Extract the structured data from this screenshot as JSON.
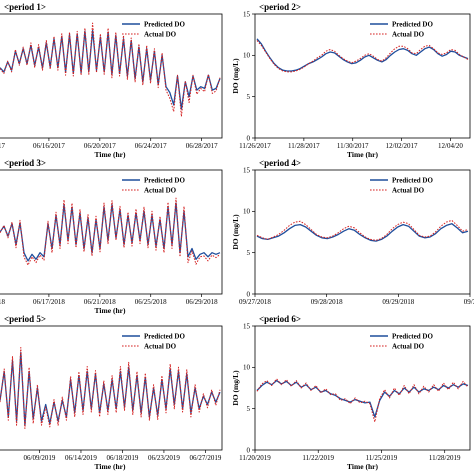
{
  "chart_data": [
    {
      "type": "line",
      "title": "<period 1>",
      "xlabel": "Time (hr)",
      "ylabel": "",
      "ylim": [
        0,
        15
      ],
      "yticks": [],
      "xticks": [
        "2017",
        "06/16/2017",
        "06/20/2017",
        "06/24/2017",
        "06/28/2017"
      ],
      "legend": "top-right",
      "series": [
        {
          "name": "Predicted DO",
          "color": "#1f4e9c",
          "style": "solid",
          "values": [
            8.5,
            8.0,
            9.2,
            8.2,
            10.5,
            9.0,
            10.8,
            9.0,
            11.2,
            8.8,
            11.0,
            8.5,
            11.5,
            8.6,
            12.0,
            8.5,
            12.3,
            8.0,
            12.5,
            7.8,
            12.6,
            7.9,
            12.9,
            8.0,
            13.0,
            8.2,
            12.2,
            8.0,
            12.8,
            7.7,
            12.4,
            7.8,
            12.0,
            7.5,
            11.8,
            7.2,
            11.0,
            6.8,
            10.8,
            7.0,
            10.5,
            6.5,
            10.0,
            6.2,
            5.5,
            4.0,
            7.5,
            3.5,
            6.8,
            5.0,
            7.5,
            5.8,
            6.2,
            6.0,
            7.6,
            5.8,
            6.0,
            7.2
          ]
        },
        {
          "name": "Actual DO",
          "color": "#d42020",
          "style": "dash",
          "values": [
            8.4,
            7.8,
            9.3,
            8.0,
            10.7,
            8.8,
            11.0,
            8.8,
            11.5,
            8.5,
            11.3,
            8.2,
            11.8,
            8.3,
            12.3,
            8.2,
            12.6,
            7.6,
            12.8,
            7.5,
            12.9,
            7.6,
            13.3,
            7.7,
            13.9,
            7.9,
            12.6,
            7.7,
            13.3,
            7.3,
            12.8,
            7.5,
            12.4,
            7.1,
            12.1,
            6.8,
            11.4,
            6.4,
            11.2,
            6.6,
            10.8,
            6.1,
            10.3,
            5.8,
            4.8,
            3.2,
            7.6,
            2.6,
            6.9,
            4.3,
            7.6,
            5.3,
            6.0,
            5.6,
            7.7,
            5.4,
            5.7,
            7.3
          ]
        }
      ]
    },
    {
      "type": "line",
      "title": "<period 2>",
      "xlabel": "Time (hr)",
      "ylabel": "DO (mg/L)",
      "ylim": [
        0,
        15
      ],
      "yticks": [
        "0",
        "5",
        "10",
        "15"
      ],
      "xticks": [
        "11/26/2017",
        "11/28/2017",
        "11/30/2017",
        "12/02/2017",
        "12/04/20"
      ],
      "legend": "top-right",
      "series": [
        {
          "name": "Predicted DO",
          "color": "#1f4e9c",
          "style": "solid",
          "values": [
            12.0,
            11.4,
            10.5,
            9.7,
            9.0,
            8.5,
            8.2,
            8.1,
            8.1,
            8.2,
            8.4,
            8.7,
            9.0,
            9.2,
            9.5,
            9.8,
            10.2,
            10.4,
            10.3,
            9.9,
            9.5,
            9.2,
            9.0,
            9.1,
            9.4,
            9.8,
            10.0,
            9.7,
            9.4,
            9.2,
            9.5,
            10.0,
            10.4,
            10.7,
            10.8,
            10.6,
            10.2,
            10.0,
            10.4,
            10.8,
            11.0,
            10.7,
            10.2,
            9.9,
            10.1,
            10.5,
            10.4,
            10.0,
            9.8,
            9.6
          ]
        },
        {
          "name": "Actual DO",
          "color": "#d42020",
          "style": "dash",
          "values": [
            11.8,
            11.2,
            10.4,
            9.6,
            8.9,
            8.4,
            8.1,
            8.0,
            8.0,
            8.1,
            8.3,
            8.6,
            9.0,
            9.3,
            9.7,
            10.0,
            10.5,
            10.7,
            10.5,
            10.0,
            9.6,
            9.3,
            9.1,
            9.3,
            9.6,
            10.0,
            10.2,
            9.9,
            9.5,
            9.3,
            9.7,
            10.3,
            10.8,
            11.1,
            11.1,
            10.8,
            10.3,
            10.2,
            10.7,
            11.1,
            11.2,
            10.8,
            10.3,
            10.1,
            10.3,
            10.7,
            10.6,
            10.1,
            9.8,
            9.5
          ]
        }
      ]
    },
    {
      "type": "line",
      "title": "<period 3>",
      "xlabel": "Time (hr)",
      "ylabel": "",
      "ylim": [
        0,
        15
      ],
      "yticks": [],
      "xticks": [
        "2018",
        "06/17/2018",
        "06/21/2018",
        "06/25/2018",
        "06/29/2018"
      ],
      "legend": "top-right",
      "series": [
        {
          "name": "Predicted DO",
          "color": "#1f4e9c",
          "style": "solid",
          "values": [
            7.5,
            8.2,
            7.0,
            8.5,
            6.0,
            8.6,
            5.0,
            4.0,
            4.8,
            4.2,
            5.0,
            4.5,
            8.5,
            5.5,
            9.5,
            6.0,
            10.8,
            6.5,
            10.5,
            6.0,
            9.8,
            5.5,
            9.2,
            5.0,
            9.0,
            5.5,
            10.5,
            6.5,
            10.8,
            6.8,
            10.2,
            6.0,
            9.5,
            6.2,
            9.8,
            6.5,
            10.0,
            6.0,
            9.5,
            5.8,
            9.0,
            5.5,
            10.5,
            6.0,
            11.0,
            5.0,
            10.0,
            4.5,
            5.5,
            4.2,
            4.8,
            5.0,
            4.5,
            5.0,
            4.8,
            5.0
          ]
        },
        {
          "name": "Actual DO",
          "color": "#d42020",
          "style": "dash",
          "values": [
            7.4,
            8.3,
            6.8,
            8.7,
            5.6,
            8.9,
            4.5,
            3.5,
            4.5,
            3.8,
            4.7,
            4.1,
            8.8,
            5.0,
            9.9,
            5.5,
            11.4,
            6.1,
            11.0,
            5.6,
            10.2,
            5.1,
            9.6,
            4.6,
            9.4,
            5.1,
            11.0,
            6.1,
            11.3,
            6.5,
            10.6,
            5.6,
            9.9,
            5.8,
            10.3,
            6.1,
            10.5,
            5.6,
            10.0,
            5.3,
            9.4,
            5.0,
            11.1,
            5.5,
            11.6,
            4.5,
            10.6,
            3.8,
            5.2,
            3.6,
            4.5,
            4.6,
            4.0,
            4.7,
            4.4,
            4.8
          ]
        }
      ]
    },
    {
      "type": "line",
      "title": "<period 4>",
      "xlabel": "",
      "ylabel": "DO (mg/L)",
      "ylim": [
        0,
        15
      ],
      "yticks": [
        "0",
        "5",
        "10",
        "15"
      ],
      "xticks": [
        "09/27/2018",
        "09/28/2018",
        "09/29/2018",
        "09/3"
      ],
      "legend": "top-right",
      "series": [
        {
          "name": "Predicted DO",
          "color": "#1f4e9c",
          "style": "solid",
          "values": [
            7.0,
            6.7,
            6.6,
            6.8,
            7.0,
            7.4,
            7.9,
            8.3,
            8.4,
            8.1,
            7.6,
            7.1,
            6.8,
            6.7,
            6.9,
            7.2,
            7.6,
            7.9,
            7.7,
            7.2,
            6.8,
            6.5,
            6.4,
            6.6,
            7.0,
            7.6,
            8.1,
            8.4,
            8.2,
            7.6,
            7.0,
            6.8,
            6.9,
            7.3,
            7.9,
            8.3,
            8.5,
            8.0,
            7.4,
            7.6
          ]
        },
        {
          "name": "Actual DO",
          "color": "#d42020",
          "style": "dash",
          "values": [
            7.1,
            6.8,
            6.6,
            6.9,
            7.2,
            7.7,
            8.3,
            8.7,
            8.8,
            8.4,
            7.8,
            7.2,
            6.9,
            6.8,
            7.0,
            7.4,
            7.9,
            8.2,
            8.0,
            7.4,
            6.9,
            6.6,
            6.5,
            6.7,
            7.2,
            7.9,
            8.4,
            8.7,
            8.5,
            7.8,
            7.1,
            6.9,
            7.0,
            7.5,
            8.2,
            8.7,
            8.9,
            8.3,
            7.6,
            7.8
          ]
        }
      ]
    },
    {
      "type": "line",
      "title": "<period 5>",
      "xlabel": "Time (hr)",
      "ylabel": "",
      "ylim": [
        0,
        15
      ],
      "yticks": [],
      "xticks": [
        "9",
        "06/09/2019",
        "06/14/2019",
        "06/18/2019",
        "06/23/2019",
        "06/27/2019"
      ],
      "legend": "top-right",
      "series": [
        {
          "name": "Predicted DO",
          "color": "#1f4e9c",
          "style": "solid",
          "values": [
            6.0,
            9.5,
            4.0,
            10.8,
            3.5,
            11.8,
            3.0,
            9.5,
            3.8,
            7.5,
            3.5,
            5.5,
            3.2,
            5.8,
            3.5,
            6.0,
            4.0,
            8.5,
            4.5,
            9.0,
            4.8,
            9.5,
            5.0,
            9.2,
            4.5,
            8.0,
            4.8,
            8.5,
            5.0,
            9.5,
            5.2,
            10.0,
            4.8,
            9.0,
            4.5,
            8.8,
            4.0,
            7.5,
            4.2,
            8.5,
            5.0,
            9.8,
            5.5,
            9.5,
            5.0,
            9.2,
            4.5,
            7.5,
            5.0,
            6.5,
            5.5,
            7.0,
            5.8,
            7.0
          ]
        },
        {
          "name": "Actual DO",
          "color": "#d42020",
          "style": "dash",
          "values": [
            5.8,
            9.8,
            3.6,
            11.3,
            3.0,
            12.4,
            2.6,
            10.0,
            3.2,
            7.9,
            3.0,
            5.2,
            2.8,
            6.1,
            3.0,
            6.4,
            3.6,
            8.9,
            4.0,
            9.5,
            4.3,
            10.1,
            4.6,
            9.6,
            4.0,
            8.4,
            4.3,
            9.0,
            4.5,
            10.1,
            4.8,
            10.6,
            4.3,
            9.5,
            4.0,
            9.3,
            3.6,
            7.9,
            3.7,
            9.0,
            4.5,
            10.4,
            5.0,
            10.0,
            4.6,
            9.7,
            4.0,
            7.9,
            4.6,
            6.8,
            5.1,
            7.3,
            5.4,
            7.3
          ]
        }
      ]
    },
    {
      "type": "line",
      "title": "<period 6>",
      "xlabel": "Time (hr)",
      "ylabel": "DO (mg/L)",
      "ylim": [
        0,
        15
      ],
      "yticks": [
        "0",
        "5",
        "10",
        "15"
      ],
      "xticks": [
        "11/20/2019",
        "11/22/2019",
        "11/25/2019",
        "11/28/2019"
      ],
      "legend": "top-right",
      "series": [
        {
          "name": "Predicted DO",
          "color": "#1f4e9c",
          "style": "solid",
          "values": [
            7.2,
            7.8,
            8.2,
            7.9,
            8.4,
            8.0,
            8.3,
            7.8,
            8.2,
            7.6,
            7.9,
            7.3,
            7.6,
            7.0,
            7.2,
            6.8,
            6.6,
            6.2,
            6.0,
            5.8,
            6.1,
            5.9,
            5.7,
            5.8,
            4.0,
            6.0,
            7.0,
            6.5,
            7.2,
            6.8,
            7.5,
            7.0,
            7.6,
            7.0,
            7.4,
            7.2,
            7.6,
            7.3,
            7.8,
            7.5,
            7.9,
            7.6,
            8.0,
            7.8
          ]
        },
        {
          "name": "Actual DO",
          "color": "#d42020",
          "style": "dash",
          "values": [
            7.1,
            8.0,
            8.4,
            7.8,
            8.6,
            7.9,
            8.5,
            7.7,
            8.4,
            7.5,
            8.1,
            7.2,
            7.8,
            6.9,
            7.4,
            6.7,
            6.8,
            6.0,
            6.2,
            5.6,
            6.3,
            5.7,
            5.9,
            5.6,
            3.4,
            6.2,
            7.3,
            6.3,
            7.5,
            6.6,
            7.8,
            6.8,
            7.9,
            6.8,
            7.7,
            7.0,
            7.9,
            7.1,
            8.1,
            7.3,
            8.2,
            7.4,
            8.3,
            7.6
          ]
        }
      ]
    }
  ]
}
